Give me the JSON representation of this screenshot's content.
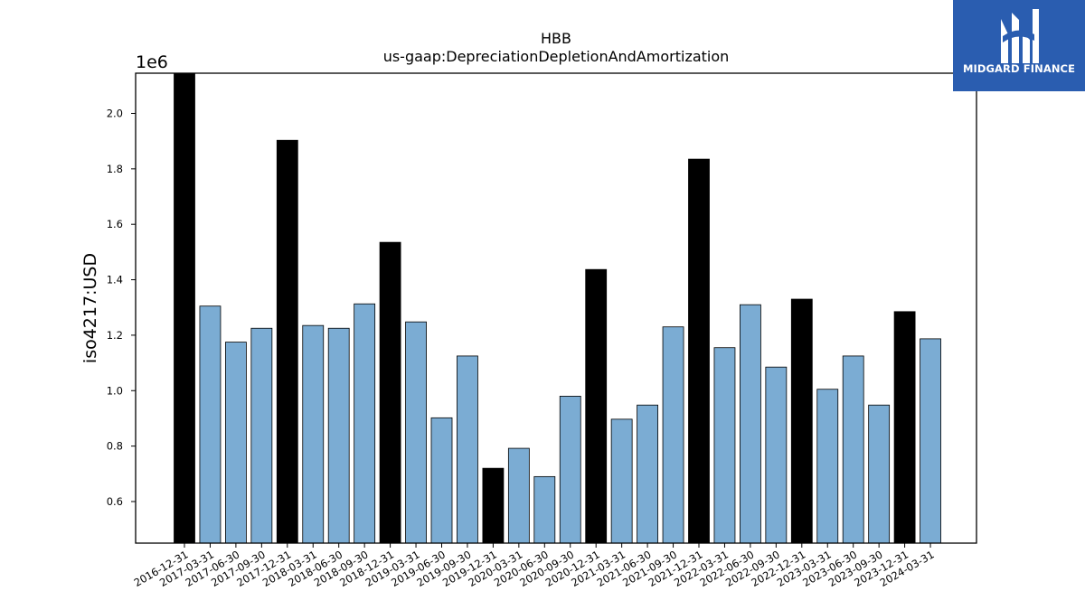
{
  "chart_data": {
    "type": "bar",
    "title": "HBB",
    "subtitle": "us-gaap:DepreciationDepletionAndAmortization",
    "ylabel": "iso4217:USD",
    "xlabel": "",
    "y_multiplier": "1e6",
    "ylim": [
      0.45,
      2.145
    ],
    "yticks": [
      "0.6",
      "0.8",
      "1.0",
      "1.2",
      "1.4",
      "1.6",
      "1.8",
      "2.0"
    ],
    "legend": "none",
    "grid": false,
    "colors": {
      "annual": "#000000",
      "quarterly": "#7bacd3"
    },
    "categories": [
      "2016-12-31",
      "2017-03-31",
      "2017-06-30",
      "2017-09-30",
      "2017-12-31",
      "2018-03-31",
      "2018-06-30",
      "2018-09-30",
      "2018-12-31",
      "2019-03-31",
      "2019-06-30",
      "2019-09-30",
      "2019-12-31",
      "2020-03-31",
      "2020-06-30",
      "2020-09-30",
      "2020-12-31",
      "2021-03-31",
      "2021-06-30",
      "2021-09-30",
      "2021-12-31",
      "2022-03-31",
      "2022-06-30",
      "2022-09-30",
      "2022-12-31",
      "2023-03-31",
      "2023-06-30",
      "2023-09-30",
      "2023-12-31",
      "2024-03-31"
    ],
    "values": [
      2145000,
      1305000,
      1175000,
      1225000,
      1903000,
      1235000,
      1225000,
      1313000,
      1535000,
      1248000,
      902000,
      1125000,
      720000,
      792000,
      690000,
      980000,
      1437000,
      897000,
      948000,
      1230000,
      1835000,
      1155000,
      1310000,
      1085000,
      1330000,
      1005000,
      1125000,
      948000,
      1285000,
      1187000
    ],
    "bar_kind": [
      "annual",
      "quarterly",
      "quarterly",
      "quarterly",
      "annual",
      "quarterly",
      "quarterly",
      "quarterly",
      "annual",
      "quarterly",
      "quarterly",
      "quarterly",
      "annual",
      "quarterly",
      "quarterly",
      "quarterly",
      "annual",
      "quarterly",
      "quarterly",
      "quarterly",
      "annual",
      "quarterly",
      "quarterly",
      "quarterly",
      "annual",
      "quarterly",
      "quarterly",
      "quarterly",
      "annual",
      "quarterly"
    ]
  },
  "logo": {
    "text": "MIDGARD FINANCE",
    "icon": "midgard-logo-icon",
    "background": "#2a5db0"
  }
}
